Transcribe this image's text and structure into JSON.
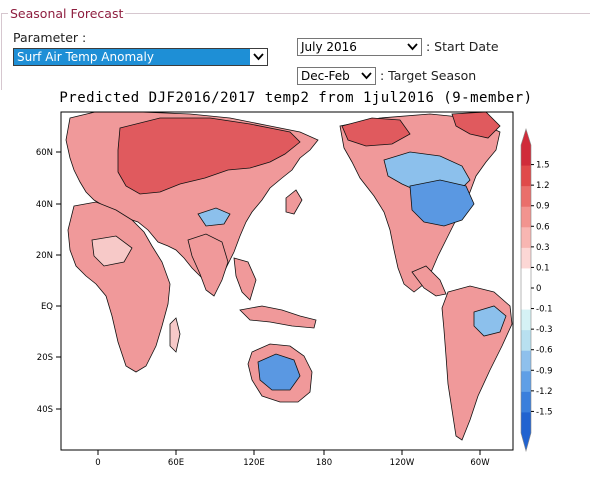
{
  "panel": {
    "title": "Seasonal Forecast",
    "parameter_label": "Parameter :",
    "parameter_value": "Surf Air Temp Anomaly",
    "start_date_value": "July 2016",
    "start_date_label": ": Start Date",
    "target_season_value": "Dec-Feb",
    "target_season_label": ": Target Season"
  },
  "map": {
    "title": "Predicted DJF2016/2017 temp2 from 1jul2016 (9-member)",
    "lon_ticks": [
      "0",
      "60E",
      "120E",
      "180",
      "120W",
      "60W"
    ],
    "lat_ticks": [
      "60N",
      "40N",
      "20N",
      "EQ",
      "20S",
      "40S"
    ],
    "colorbar": {
      "labels": [
        "1.5",
        "1.2",
        "0.9",
        "0.6",
        "0.3",
        "0.1",
        "0",
        "-0.1",
        "-0.3",
        "-0.6",
        "-0.9",
        "-1.2",
        "-1.5"
      ],
      "colors": [
        "#d02c3a",
        "#e04a4a",
        "#ea6f6b",
        "#f2948f",
        "#f8b6b2",
        "#fcd7d5",
        "#ffffff",
        "#ffffff",
        "#d5f2f5",
        "#b8e0f0",
        "#8ec0ec",
        "#5f9fe6",
        "#3a7fdc",
        "#2163d0"
      ]
    },
    "colors": {
      "ocean": "#ffffff",
      "land_warm": "#f0999a",
      "land_hot": "#e05a5e",
      "land_neutral": "#f7c9c8",
      "land_cool": "#8cc0ec",
      "land_cold": "#5a98e2",
      "land_cyan": "#aee4f2",
      "coast": "#111111"
    }
  }
}
